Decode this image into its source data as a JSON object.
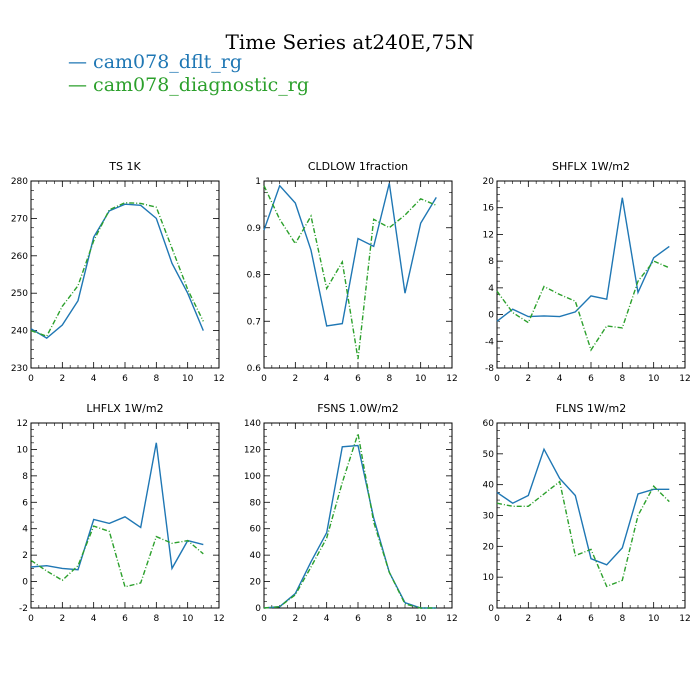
{
  "title": "Time Series at240E,75N",
  "legend": [
    {
      "label": "cam078_dflt_rg",
      "color": "#1f77b4"
    },
    {
      "label": "cam078_diagnostic_rg",
      "color": "#2ca02c"
    }
  ],
  "chart_data": [
    {
      "type": "line",
      "title": "TS   1K",
      "x": [
        0,
        1,
        2,
        3,
        4,
        5,
        6,
        7,
        8,
        9,
        10,
        11
      ],
      "xlim": [
        0,
        12
      ],
      "ylim": [
        230,
        280
      ],
      "xticks": [
        0,
        2,
        4,
        6,
        8,
        10,
        12
      ],
      "yticks": [
        230,
        240,
        250,
        260,
        270,
        280
      ],
      "series": [
        {
          "name": "cam078_dflt_rg",
          "values": [
            240.5,
            238,
            241.5,
            248,
            265,
            272,
            273.8,
            273.5,
            270,
            258,
            250,
            240
          ]
        },
        {
          "name": "cam078_diagnostic_rg",
          "values": [
            240,
            238.5,
            246.5,
            252,
            264,
            272.3,
            274.2,
            274,
            273,
            262,
            251,
            242.5
          ]
        }
      ]
    },
    {
      "type": "line",
      "title": "CLDLOW   1fraction",
      "x": [
        0,
        1,
        2,
        3,
        4,
        5,
        6,
        7,
        8,
        9,
        10,
        11
      ],
      "xlim": [
        0,
        12
      ],
      "ylim": [
        0.6,
        1.0
      ],
      "xticks": [
        0,
        2,
        4,
        6,
        8,
        10,
        12
      ],
      "yticks": [
        0.6,
        0.7,
        0.8,
        0.9,
        1.0
      ],
      "series": [
        {
          "name": "cam078_dflt_rg",
          "values": [
            0.895,
            0.99,
            0.953,
            0.852,
            0.69,
            0.695,
            0.877,
            0.86,
            0.995,
            0.76,
            0.91,
            0.965
          ]
        },
        {
          "name": "cam078_diagnostic_rg",
          "values": [
            0.99,
            0.918,
            0.866,
            0.925,
            0.77,
            0.827,
            0.619,
            0.918,
            0.9,
            0.927,
            0.962,
            0.948
          ]
        }
      ]
    },
    {
      "type": "line",
      "title": "SHFLX   1W/m2",
      "x": [
        0,
        1,
        2,
        3,
        4,
        5,
        6,
        7,
        8,
        9,
        10,
        11
      ],
      "xlim": [
        0,
        12
      ],
      "ylim": [
        -8,
        20
      ],
      "xticks": [
        0,
        2,
        4,
        6,
        8,
        10,
        12
      ],
      "yticks": [
        -8,
        -4,
        0,
        4,
        8,
        12,
        16,
        20
      ],
      "series": [
        {
          "name": "cam078_dflt_rg",
          "values": [
            -1,
            0.8,
            -0.3,
            -0.2,
            -0.3,
            0.4,
            2.8,
            2.3,
            17.5,
            3.3,
            8.5,
            10.2
          ]
        },
        {
          "name": "cam078_diagnostic_rg",
          "values": [
            3.5,
            0.3,
            -1.2,
            4.2,
            3,
            2,
            -5.3,
            -1.7,
            -2,
            5,
            8,
            7
          ]
        }
      ]
    },
    {
      "type": "line",
      "title": "LHFLX   1W/m2",
      "x": [
        0,
        1,
        2,
        3,
        4,
        5,
        6,
        7,
        8,
        9,
        10,
        11
      ],
      "xlim": [
        0,
        12
      ],
      "ylim": [
        -2,
        12
      ],
      "xticks": [
        0,
        2,
        4,
        6,
        8,
        10,
        12
      ],
      "yticks": [
        -2,
        0,
        2,
        4,
        6,
        8,
        10,
        12
      ],
      "series": [
        {
          "name": "cam078_dflt_rg",
          "values": [
            1.1,
            1.2,
            1,
            0.9,
            4.7,
            4.4,
            4.9,
            4.1,
            10.5,
            1,
            3.1,
            2.8
          ]
        },
        {
          "name": "cam078_diagnostic_rg",
          "values": [
            1.6,
            0.8,
            0.1,
            1.2,
            4.2,
            3.8,
            -0.4,
            -0.1,
            3.4,
            2.9,
            3.1,
            2.1
          ]
        }
      ]
    },
    {
      "type": "line",
      "title": "FSNS   1.0W/m2",
      "x": [
        0,
        1,
        2,
        3,
        4,
        5,
        6,
        7,
        8,
        9,
        10,
        11
      ],
      "xlim": [
        0,
        12
      ],
      "ylim": [
        0,
        140
      ],
      "xticks": [
        0,
        2,
        4,
        6,
        8,
        10,
        12
      ],
      "yticks": [
        0,
        20,
        40,
        60,
        80,
        100,
        120,
        140
      ],
      "series": [
        {
          "name": "cam078_dflt_rg",
          "values": [
            0,
            1,
            11,
            35,
            57,
            122,
            123,
            68,
            27,
            4,
            0,
            0
          ]
        },
        {
          "name": "cam078_diagnostic_rg",
          "values": [
            0,
            1,
            10,
            31,
            53,
            95,
            132,
            65,
            27,
            3,
            0,
            0
          ]
        }
      ]
    },
    {
      "type": "line",
      "title": "FLNS   1W/m2",
      "x": [
        0,
        1,
        2,
        3,
        4,
        5,
        6,
        7,
        8,
        9,
        10,
        11
      ],
      "xlim": [
        0,
        12
      ],
      "ylim": [
        0,
        60
      ],
      "xticks": [
        0,
        2,
        4,
        6,
        8,
        10,
        12
      ],
      "yticks": [
        0,
        10,
        20,
        30,
        40,
        50,
        60
      ],
      "series": [
        {
          "name": "cam078_dflt_rg",
          "values": [
            37.5,
            34,
            36.5,
            51.5,
            42,
            36.5,
            16,
            14,
            19.5,
            37,
            38.5,
            38.5
          ]
        },
        {
          "name": "cam078_diagnostic_rg",
          "values": [
            34,
            33,
            33,
            37,
            41,
            17,
            19,
            7,
            9,
            30,
            39.5,
            34.5
          ]
        }
      ]
    }
  ]
}
